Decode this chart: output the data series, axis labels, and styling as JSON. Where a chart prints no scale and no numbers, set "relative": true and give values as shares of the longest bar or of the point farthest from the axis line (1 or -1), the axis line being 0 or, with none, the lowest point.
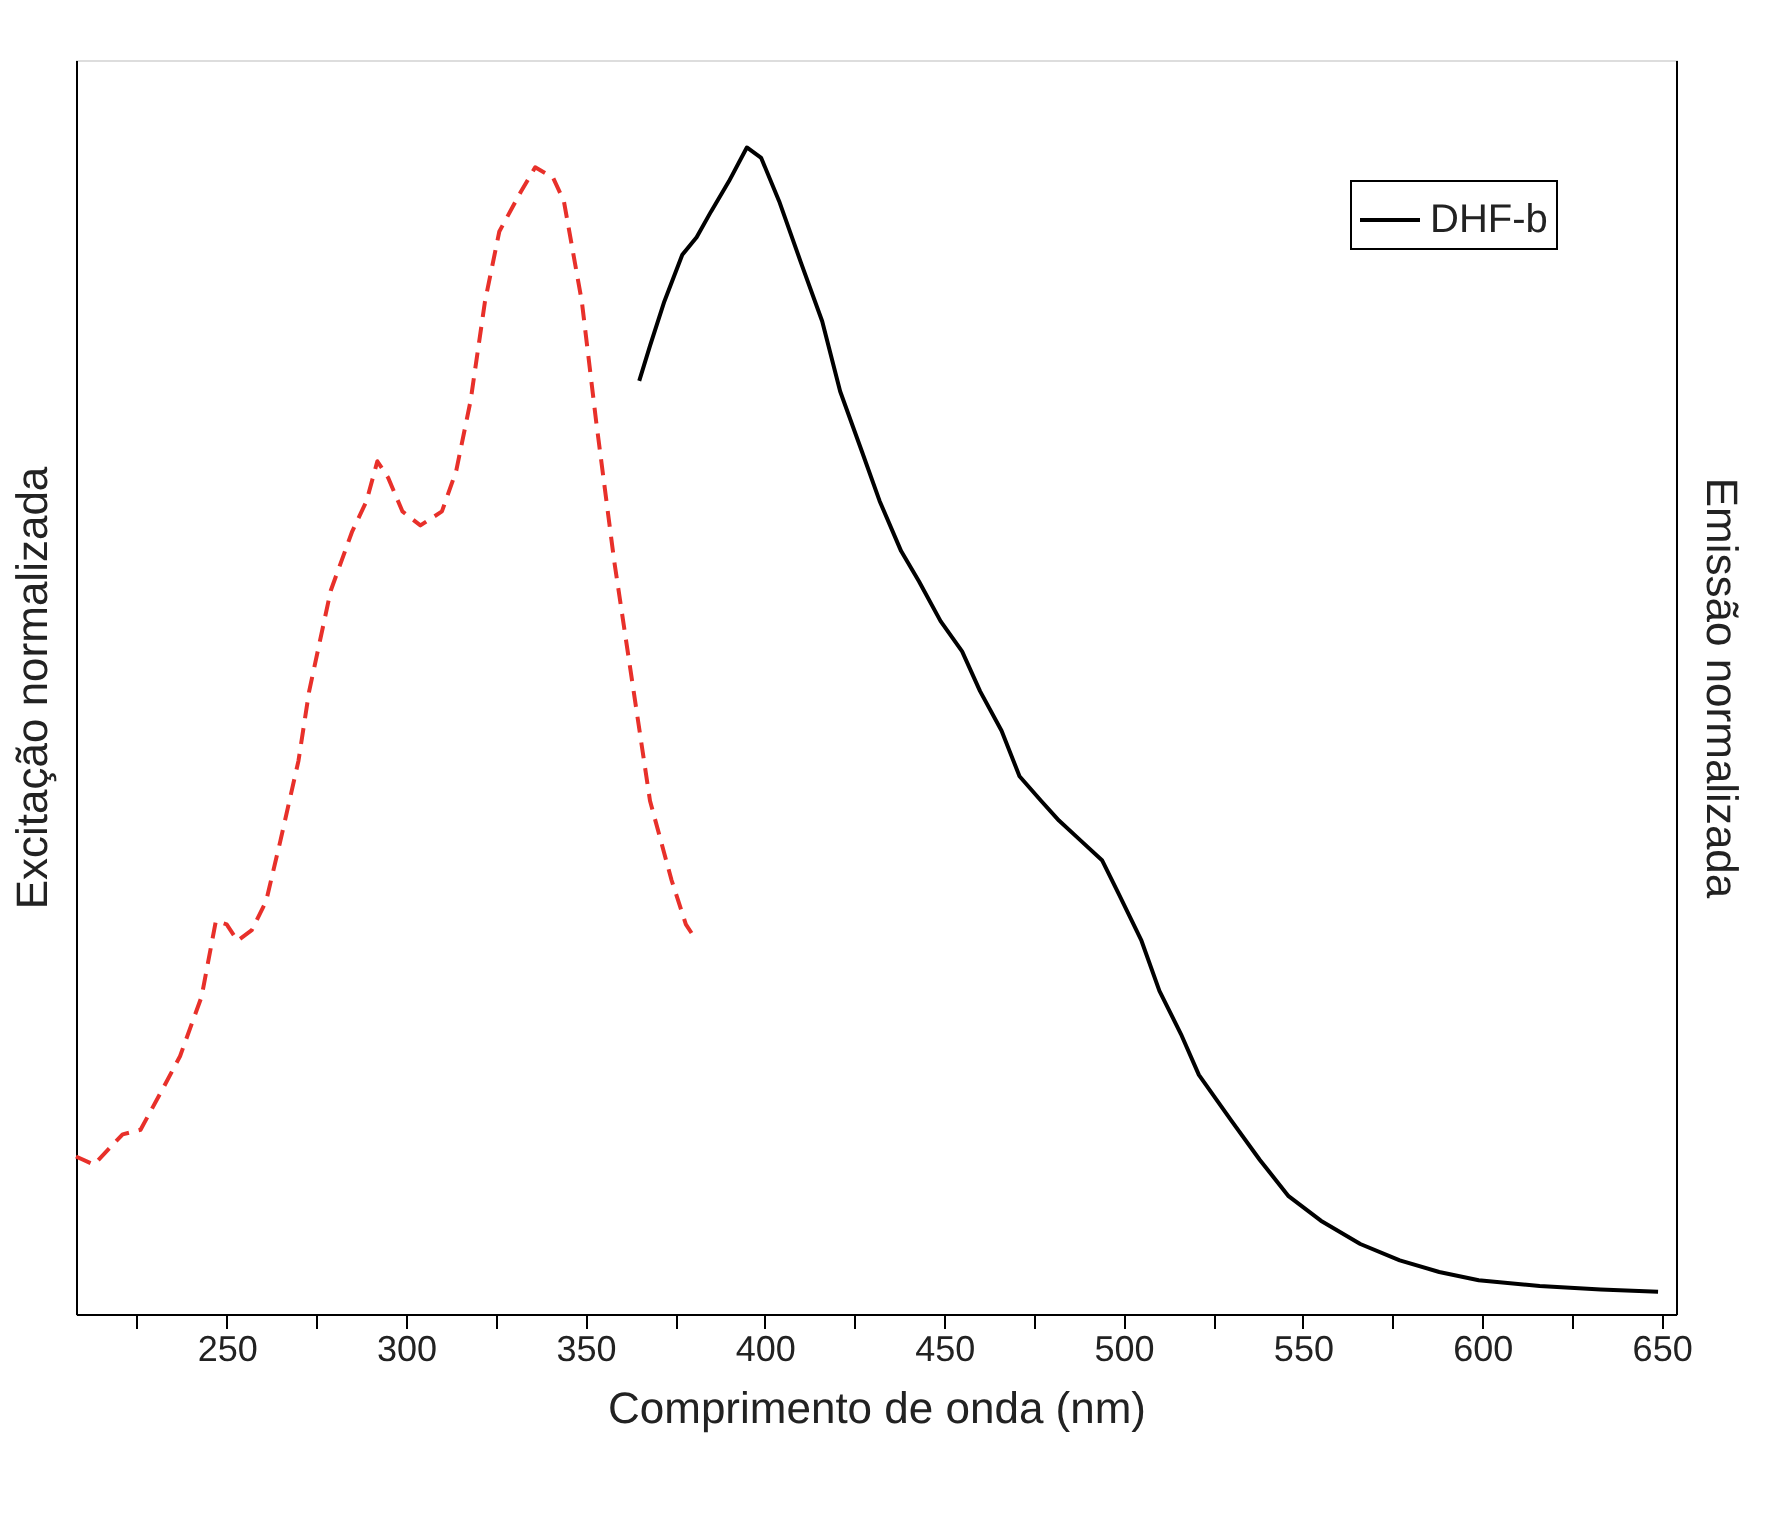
{
  "chart_data": {
    "type": "line",
    "relative": true,
    "xlabel": "Comprimento de onda (nm)",
    "ylabel": "Excitação normalizada",
    "y2label": "Emissão normalizada",
    "xlim": [
      208,
      654
    ],
    "xticks": [
      {
        "value": 225,
        "label": null
      },
      250,
      {
        "value": 275,
        "label": null
      },
      300,
      {
        "value": 325,
        "label": null
      },
      350,
      {
        "value": 375,
        "label": null
      },
      400,
      {
        "value": 425,
        "label": null
      },
      450,
      {
        "value": 475,
        "label": null
      },
      500,
      {
        "value": 525,
        "label": null
      },
      550,
      {
        "value": 575,
        "label": null
      },
      600,
      {
        "value": 625,
        "label": null
      },
      650
    ],
    "legend": "top right",
    "grid": false,
    "series": [
      {
        "color": "#e8302a",
        "line_style": "dashed",
        "x": [
          208,
          213,
          221,
          226,
          232,
          237,
          243,
          247,
          250,
          253,
          257,
          261,
          265,
          270,
          273,
          279,
          285,
          289,
          292,
          295,
          299,
          304,
          310,
          314,
          318,
          322,
          326,
          332,
          336,
          341,
          344,
          349,
          353,
          358,
          363,
          368,
          374,
          378,
          381
        ],
        "values": [
          0.135,
          0.128,
          0.154,
          0.158,
          0.192,
          0.221,
          0.272,
          0.337,
          0.334,
          0.32,
          0.329,
          0.354,
          0.406,
          0.474,
          0.534,
          0.62,
          0.671,
          0.697,
          0.731,
          0.717,
          0.688,
          0.676,
          0.688,
          0.723,
          0.783,
          0.868,
          0.928,
          0.962,
          0.983,
          0.974,
          0.954,
          0.868,
          0.765,
          0.646,
          0.543,
          0.44,
          0.372,
          0.334,
          0.32
        ]
      },
      {
        "name": "DHF-b",
        "color": "#000000",
        "line_style": "solid",
        "axis": "y2",
        "x": [
          365,
          368,
          372,
          377,
          381,
          385,
          390,
          395,
          399,
          404,
          410,
          416,
          421,
          427,
          432,
          438,
          443,
          449,
          455,
          460,
          466,
          471,
          477,
          482,
          488,
          494,
          499,
          505,
          510,
          516,
          521,
          530,
          538,
          546,
          555,
          566,
          577,
          588,
          599,
          616,
          633,
          649
        ],
        "values": [
          0.8,
          0.83,
          0.868,
          0.908,
          0.923,
          0.945,
          0.971,
          1.0,
          0.991,
          0.954,
          0.902,
          0.851,
          0.791,
          0.74,
          0.697,
          0.654,
          0.628,
          0.594,
          0.568,
          0.534,
          0.5,
          0.461,
          0.44,
          0.423,
          0.406,
          0.389,
          0.358,
          0.32,
          0.277,
          0.24,
          0.205,
          0.166,
          0.132,
          0.101,
          0.08,
          0.06,
          0.046,
          0.036,
          0.029,
          0.024,
          0.021,
          0.019
        ]
      }
    ]
  }
}
